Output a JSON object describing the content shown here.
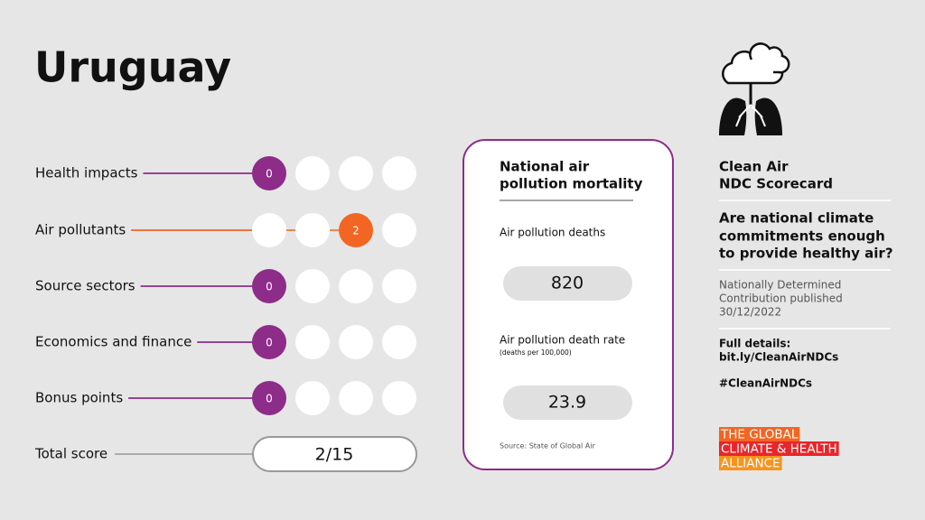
{
  "header": {
    "title": "Uruguay"
  },
  "scores": [
    {
      "label": "Health impacts",
      "score": 0,
      "color": "#8e2c8a"
    },
    {
      "label": "Air pollutants",
      "score": 2,
      "color": "#f26522"
    },
    {
      "label": "Source sectors",
      "score": 0,
      "color": "#8e2c8a"
    },
    {
      "label": "Economics and finance",
      "score": 0,
      "color": "#8e2c8a"
    },
    {
      "label": "Bonus points",
      "score": 0,
      "color": "#8e2c8a"
    }
  ],
  "total": {
    "label": "Total score",
    "value": "2/15"
  },
  "mortality": {
    "title": [
      "National air",
      "pollution mortality"
    ],
    "deaths_label": "Air pollution deaths",
    "deaths": 820,
    "rate_label": "Air pollution death rate",
    "rate_unit": "(deaths per 100,000)",
    "rate": 23.9,
    "source": "Source: State of Global Air"
  },
  "sidebar": {
    "title": [
      "Clean Air",
      "NDC Scorecard"
    ],
    "question": [
      "Are national climate",
      "commitments enough",
      "to provide healthy air?"
    ],
    "ndc": [
      "Nationally Determined",
      "Contribution published",
      "30/12/2022"
    ],
    "details": [
      "Full details:",
      "bit.ly/CleanAirNDCs"
    ],
    "hashtag": "#CleanAirNDCs",
    "logo": [
      "THE GLOBAL",
      "CLIMATE & HEALTH",
      "ALLIANCE"
    ]
  }
}
